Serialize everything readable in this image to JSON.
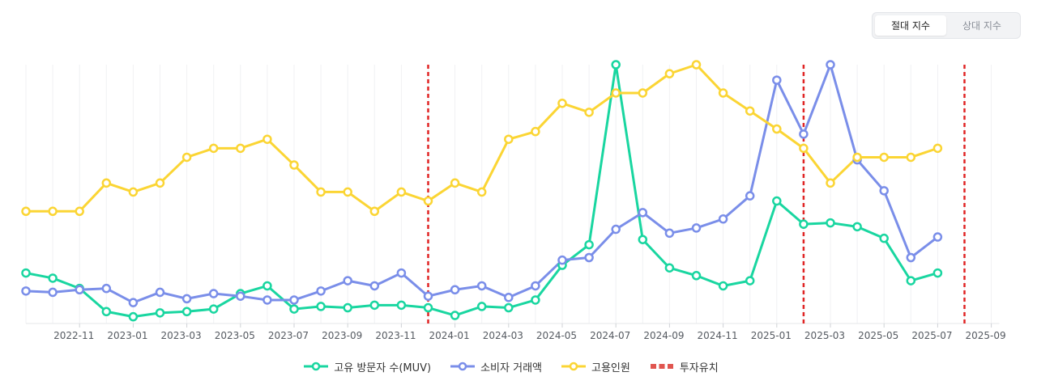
{
  "toggle": {
    "absolute_label": "절대 지수",
    "relative_label": "상대 지수",
    "selected": "absolute"
  },
  "chart_data": {
    "type": "line",
    "x": [
      "2022-09",
      "2022-10",
      "2022-11",
      "2022-12",
      "2023-01",
      "2023-02",
      "2023-03",
      "2023-04",
      "2023-05",
      "2023-06",
      "2023-07",
      "2023-08",
      "2023-09",
      "2023-10",
      "2023-11",
      "2023-12",
      "2024-01",
      "2024-02",
      "2024-03",
      "2024-04",
      "2024-05",
      "2024-06",
      "2024-07",
      "2024-08",
      "2024-09",
      "2024-10",
      "2024-11",
      "2024-12",
      "2025-01",
      "2025-02",
      "2025-03",
      "2025-04",
      "2025-05",
      "2025-06",
      "2025-07"
    ],
    "x_ticks": [
      "2022-11",
      "2023-01",
      "2023-03",
      "2023-05",
      "2023-07",
      "2023-09",
      "2023-11",
      "2024-01",
      "2024-03",
      "2024-05",
      "2024-07",
      "2024-09",
      "2024-11",
      "2025-01",
      "2025-03",
      "2025-05",
      "2025-07",
      "2025-09"
    ],
    "ylim": [
      0,
      100
    ],
    "grid": "vertical",
    "series": [
      {
        "name": "고유 방문자 수(MUV)",
        "color": "#19d6a0",
        "values": [
          19,
          17,
          13,
          4,
          2,
          3.5,
          4,
          5,
          11,
          14,
          5,
          6,
          5.5,
          6.5,
          6.5,
          5.5,
          2.5,
          6,
          5.5,
          8.5,
          22,
          30,
          100,
          32,
          21,
          18,
          14,
          16,
          47,
          38,
          38.5,
          37,
          32.5,
          16,
          19
        ]
      },
      {
        "name": "소비자 거래액",
        "color": "#7a8ee9",
        "values": [
          12,
          11.5,
          12.5,
          13,
          7.5,
          11.5,
          9,
          11,
          10,
          8.5,
          8.5,
          12,
          16,
          14,
          19,
          10,
          12.5,
          14,
          9.5,
          14,
          24,
          25,
          36,
          42.5,
          34.5,
          36.5,
          40,
          49,
          94,
          73,
          100,
          63,
          51,
          25,
          33
        ]
      },
      {
        "name": "고용인원",
        "color": "#fbd534",
        "values": [
          43,
          43,
          43,
          54,
          50.5,
          54,
          64,
          67.5,
          67.5,
          71,
          61,
          50.5,
          50.5,
          43,
          50.5,
          47,
          54,
          50.5,
          71,
          74,
          85,
          81.5,
          89,
          89,
          96.5,
          100,
          89,
          82,
          75,
          67.5,
          54,
          64,
          64,
          64,
          67.5
        ]
      }
    ],
    "events": {
      "name": "투자유치",
      "color": "#e02424",
      "dates": [
        "2023-12",
        "2025-02",
        "2025-08"
      ]
    }
  }
}
